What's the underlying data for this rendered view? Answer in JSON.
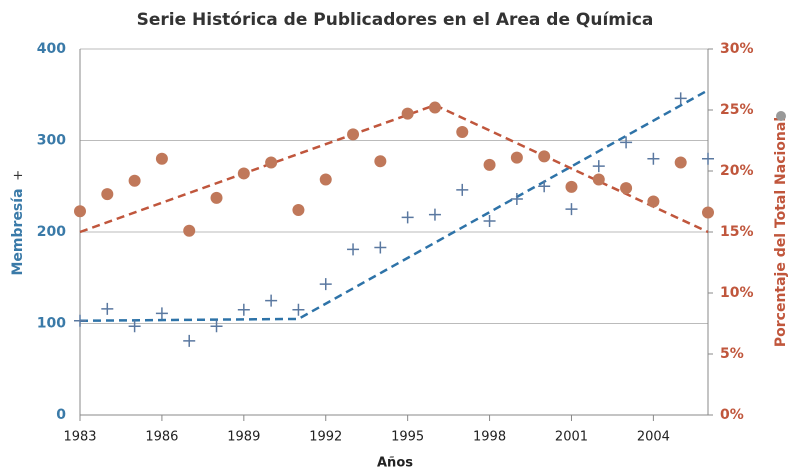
{
  "chart_data": {
    "type": "scatter",
    "title": "Serie Histórica de Publicadores en el Area de Química",
    "x_label": "Años",
    "y_label": "Membresía",
    "y2_label": "Porcentaje del Total Nacional",
    "xlim": [
      1983,
      2006
    ],
    "xticks": [
      1983,
      1986,
      1989,
      1992,
      1995,
      1998,
      2001,
      2004
    ],
    "ylim": [
      0,
      400
    ],
    "yticks": [
      0,
      100,
      200,
      300,
      400
    ],
    "y2lim": [
      0,
      30
    ],
    "y2ticks": [
      {
        "value": 0,
        "label": "0%"
      },
      {
        "value": 5,
        "label": "5%"
      },
      {
        "value": 10,
        "label": "10%"
      },
      {
        "value": 15,
        "label": "15%"
      },
      {
        "value": 20,
        "label": "20%"
      },
      {
        "value": 25,
        "label": "25%"
      },
      {
        "value": 30,
        "label": "30%"
      }
    ],
    "grid": true,
    "x": [
      1983,
      1984,
      1985,
      1986,
      1987,
      1988,
      1989,
      1990,
      1991,
      1992,
      1993,
      1994,
      1995,
      1996,
      1997,
      1998,
      1999,
      2000,
      2001,
      2002,
      2003,
      2004,
      2005,
      2006
    ],
    "series": [
      {
        "marker": "plus",
        "color": "#5a78a0",
        "values": [
          103,
          116,
          97,
          111,
          81,
          97,
          115,
          125,
          115,
          143,
          181,
          183,
          216,
          219,
          246,
          212,
          236,
          250,
          225,
          272,
          298,
          280,
          346,
          280
        ]
      },
      {
        "marker": "circle",
        "color": "#c0785a",
        "axis": "y2",
        "values": [
          16.7,
          18.1,
          19.2,
          21.0,
          15.1,
          17.8,
          19.8,
          20.7,
          16.8,
          19.3,
          23.0,
          20.8,
          24.7,
          25.2,
          23.2,
          20.5,
          21.1,
          21.2,
          18.7,
          19.3,
          18.6,
          17.5,
          20.7,
          16.6
        ]
      }
    ],
    "trendlines": [
      {
        "color": "#2e73a8",
        "x": [
          1983,
          1991,
          2006
        ],
        "values": [
          103,
          105,
          355
        ]
      },
      {
        "color": "#c0563c",
        "axis": "y2",
        "x": [
          1983,
          1996,
          2006
        ],
        "values": [
          15,
          25.4,
          15
        ]
      }
    ]
  }
}
